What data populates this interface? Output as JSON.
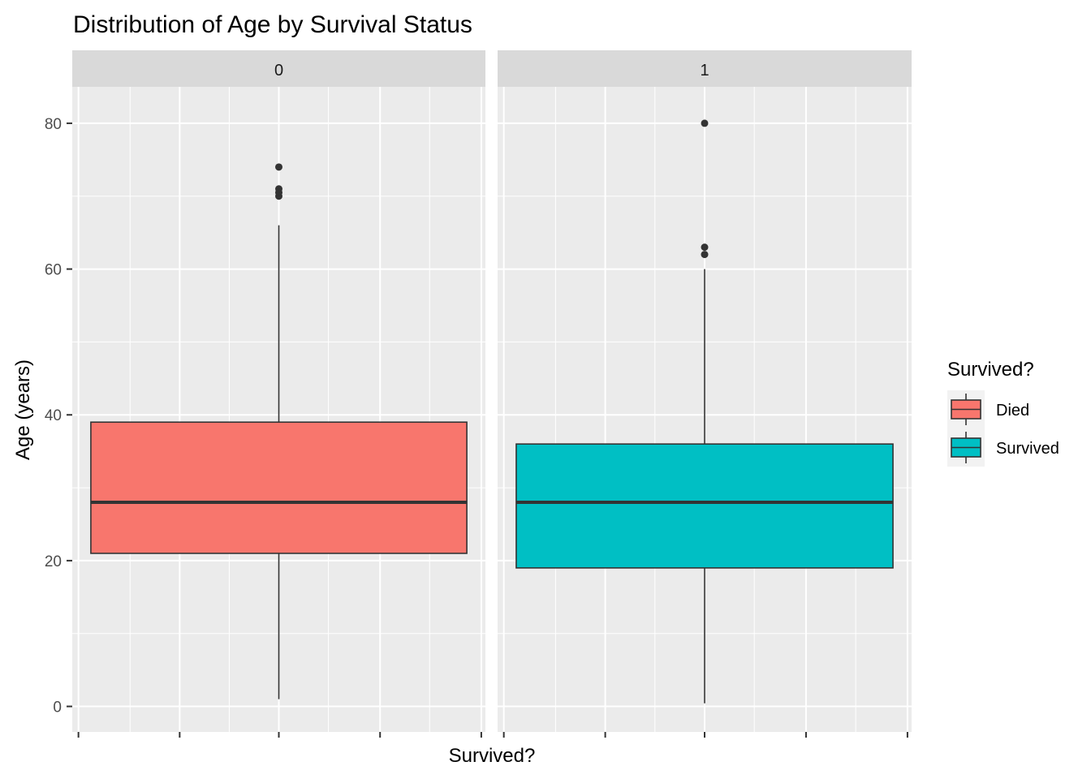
{
  "chart_data": {
    "type": "boxplot",
    "title": "Distribution of Age by Survival Status",
    "xlabel": "Survived?",
    "ylabel": "Age (years)",
    "ylim": [
      -3.5,
      85
    ],
    "y_ticks": [
      0,
      20,
      40,
      60,
      80
    ],
    "grid": true,
    "facets": [
      {
        "strip": "0",
        "series": "Died",
        "color": "#F8766D",
        "min": 1,
        "q1": 21,
        "median": 28,
        "q3": 39,
        "max": 66,
        "outliers": [
          70,
          70.5,
          71,
          74
        ]
      },
      {
        "strip": "1",
        "series": "Survived",
        "color": "#00BFC4",
        "min": 0.42,
        "q1": 19,
        "median": 28,
        "q3": 36,
        "max": 60,
        "outliers": [
          62,
          63,
          80
        ]
      }
    ],
    "legend": {
      "title": "Survived?",
      "position": "right",
      "items": [
        {
          "label": "Died",
          "color": "#F8766D"
        },
        {
          "label": "Survived",
          "color": "#00BFC4"
        }
      ]
    }
  }
}
